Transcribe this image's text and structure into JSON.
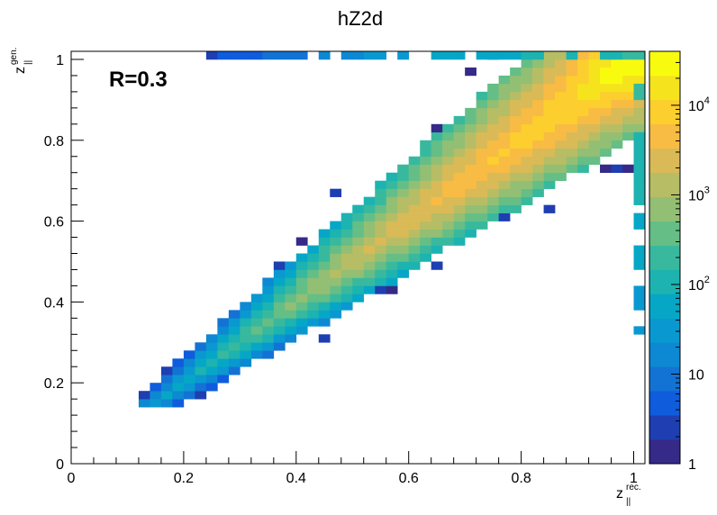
{
  "title": "hZ2d",
  "annotation": "R=0.3",
  "chart_data": {
    "type": "heatmap",
    "title": "hZ2d",
    "xlabel": {
      "main": "z",
      "sub": "||",
      "sup": "rec."
    },
    "ylabel": {
      "main": "z",
      "sub": "||",
      "sup": "gen."
    },
    "xlim": [
      0,
      1.02
    ],
    "ylim": [
      0,
      1.02
    ],
    "nbins_x": 51,
    "nbins_y": 51,
    "x_ticks": [
      0,
      0.2,
      0.4,
      0.6,
      0.8,
      1
    ],
    "x_tick_labels": [
      "0",
      "0.2",
      "0.4",
      "0.6",
      "0.8",
      "1"
    ],
    "y_ticks": [
      0,
      0.2,
      0.4,
      0.6,
      0.8,
      1
    ],
    "y_tick_labels": [
      "0",
      "0.2",
      "0.4",
      "0.6",
      "0.8",
      "1"
    ],
    "z_scale": "log",
    "z_range": [
      1,
      40000
    ],
    "z_ticks": [
      1,
      10,
      100,
      1000,
      10000
    ],
    "z_tick_labels": [
      "1",
      "10",
      "10^2",
      "10^3",
      "10^4"
    ],
    "palette": [
      "#352a87",
      "#1e3eb2",
      "#0f5cdd",
      "#1373d4",
      "#0d88d2",
      "#0a98d1",
      "#06a7c6",
      "#1cb3b0",
      "#38b99e",
      "#65be86",
      "#92bf73",
      "#b7bd64",
      "#d9ba56",
      "#f8bb44",
      "#fcce2e",
      "#f5e41d",
      "#f9fb0e"
    ],
    "diagonal_peak_counts": [
      {
        "z": 0.16,
        "count": 40
      },
      {
        "z": 0.3,
        "count": 220
      },
      {
        "z": 0.5,
        "count": 1500
      },
      {
        "z": 0.7,
        "count": 5000
      },
      {
        "z": 0.9,
        "count": 12000
      },
      {
        "z": 0.99,
        "count": 40000
      }
    ]
  }
}
